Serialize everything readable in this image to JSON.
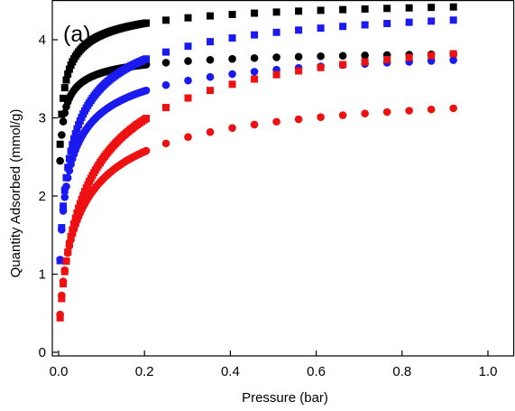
{
  "chart_data": {
    "type": "scatter",
    "panel_label": "(a)",
    "xlabel": "Pressure (bar)",
    "ylabel": "Quantity Adsorbed (mmol/g)",
    "xlim": [
      0.0,
      1.0
    ],
    "ylim": [
      0,
      4.3
    ],
    "x_ticks": [
      "0.0",
      "0.2",
      "0.4",
      "0.6",
      "0.8",
      "1.0"
    ],
    "y_ticks": [
      "0",
      "1",
      "2",
      "3",
      "4"
    ],
    "grid": false,
    "legend": "none",
    "series": [
      {
        "color": "#000000",
        "marker": "square",
        "k": 0.0435,
        "qmax": 4.62,
        "n": 0.5
      },
      {
        "color": "#000000",
        "marker": "circle",
        "k": 0.0285,
        "qmax": 3.93,
        "n": 0.54
      },
      {
        "color": "#1a1af0",
        "marker": "square",
        "k": 0.089,
        "qmax": 4.65,
        "n": 0.62
      },
      {
        "color": "#1a1af0",
        "marker": "circle",
        "k": 0.0815,
        "qmax": 4.06,
        "n": 0.6
      },
      {
        "color": "#ee1111",
        "marker": "square",
        "k": 0.155,
        "qmax": 4.45,
        "n": 0.72
      },
      {
        "color": "#ee1111",
        "marker": "circle",
        "k": 0.12,
        "qmax": 3.52,
        "n": 0.7
      }
    ]
  }
}
